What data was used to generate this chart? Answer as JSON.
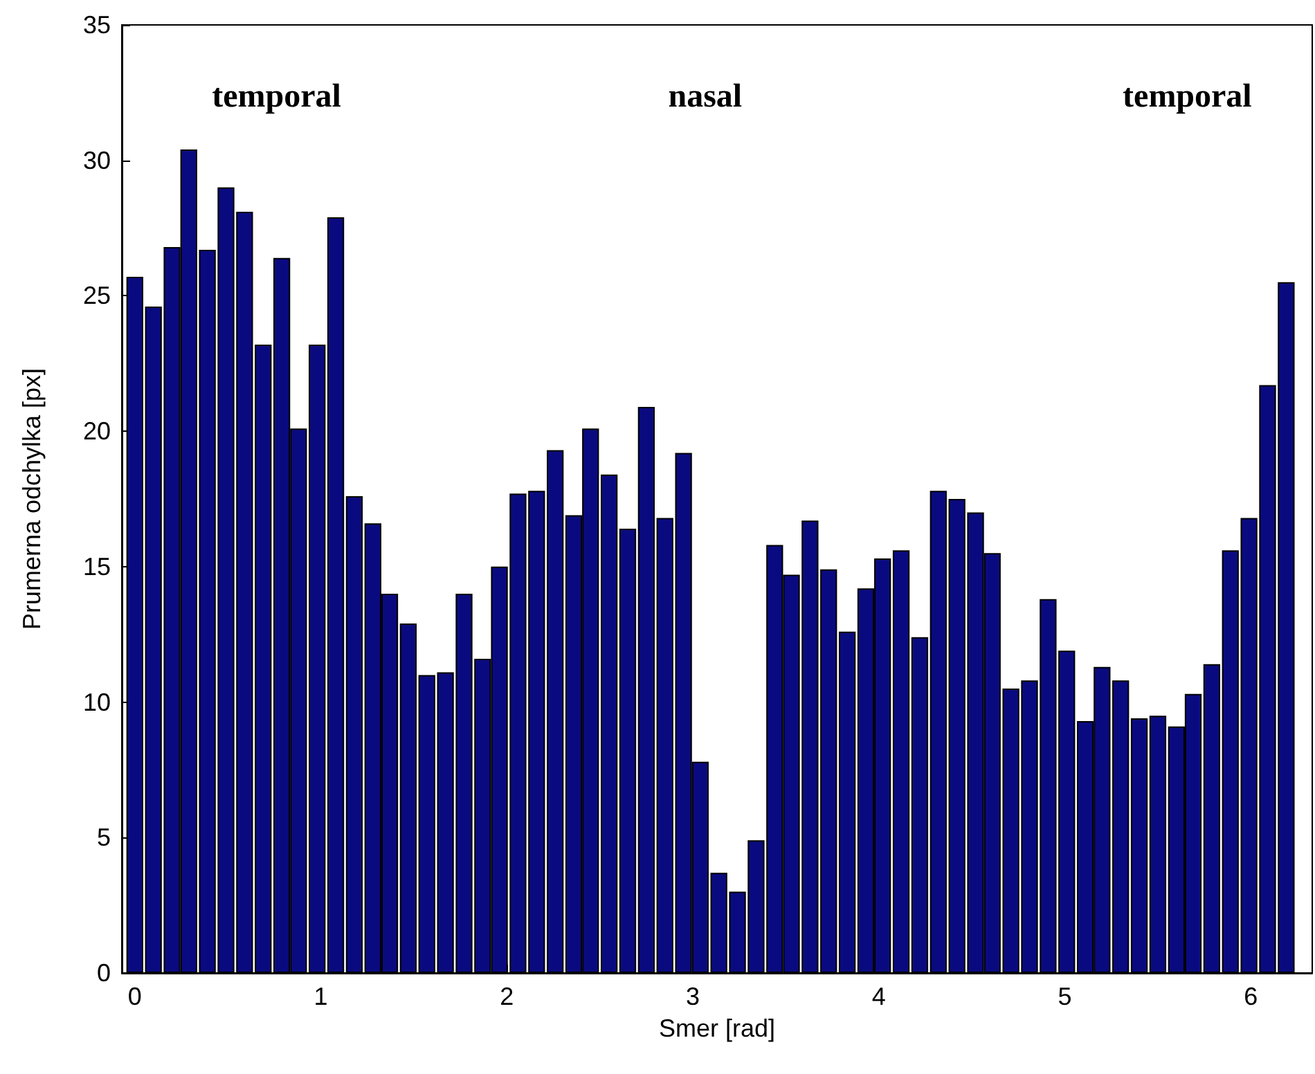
{
  "chart_data": {
    "type": "bar",
    "xlabel": "Smer [rad]",
    "ylabel": "Prumerna odchylka [px]",
    "x": [
      0,
      0.1,
      0.2,
      0.29,
      0.39,
      0.49,
      0.59,
      0.69,
      0.79,
      0.88,
      0.98,
      1.08,
      1.18,
      1.28,
      1.37,
      1.47,
      1.57,
      1.67,
      1.77,
      1.87,
      1.96,
      2.06,
      2.16,
      2.26,
      2.36,
      2.45,
      2.55,
      2.65,
      2.75,
      2.85,
      2.95,
      3.04,
      3.14,
      3.24,
      3.34,
      3.44,
      3.53,
      3.63,
      3.73,
      3.83,
      3.93,
      4.02,
      4.12,
      4.22,
      4.32,
      4.42,
      4.52,
      4.61,
      4.71,
      4.81,
      4.91,
      5.01,
      5.11,
      5.2,
      5.3,
      5.4,
      5.5,
      5.6,
      5.69,
      5.79,
      5.89,
      5.99,
      6.09,
      6.19
    ],
    "values": [
      25.7,
      24.6,
      26.8,
      30.4,
      26.7,
      29.0,
      28.1,
      23.2,
      26.4,
      20.1,
      23.2,
      27.9,
      17.6,
      16.6,
      14.0,
      12.9,
      11.0,
      11.1,
      14.0,
      11.6,
      15.0,
      17.7,
      17.8,
      19.3,
      16.9,
      20.1,
      18.4,
      16.4,
      20.9,
      16.8,
      19.2,
      7.8,
      3.7,
      3.0,
      4.9,
      15.8,
      14.7,
      16.7,
      14.9,
      12.6,
      14.2,
      15.3,
      15.6,
      12.4,
      17.8,
      17.5,
      17.0,
      15.5,
      10.5,
      10.8,
      13.8,
      11.9,
      9.3,
      11.3,
      10.8,
      9.4,
      9.5,
      9.1,
      10.3,
      11.4,
      15.6,
      16.8,
      21.7,
      25.5
    ],
    "color": "#0a0a80",
    "xlim": [
      -0.07,
      6.33
    ],
    "xticks": [
      0,
      1,
      2,
      3,
      4,
      5,
      6
    ],
    "ylim": [
      0,
      35
    ],
    "yticks": [
      0,
      5,
      10,
      15,
      20,
      25,
      30,
      35
    ],
    "annotations": [
      "temporal",
      "nasal",
      "temporal"
    ]
  }
}
